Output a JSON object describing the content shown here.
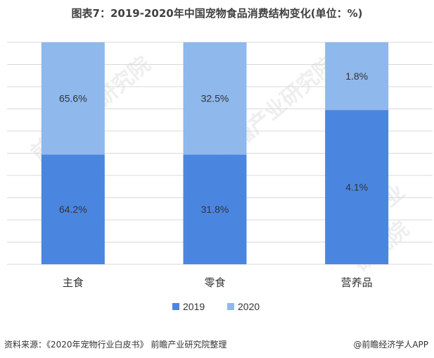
{
  "title": "图表7：2019-2020年中国宠物食品消费结构变化(单位：%)",
  "footer": {
    "source": "资料来源：《2020年宠物行业白皮书》 前瞻产业研究院整理",
    "brand": "@前瞻经济学人APP"
  },
  "watermark": "前瞻产业研究院",
  "chart_data": {
    "type": "bar",
    "stacked": true,
    "categories": [
      "主食",
      "零食",
      "营养品"
    ],
    "series": [
      {
        "name": "2019",
        "values": [
          64.2,
          31.8,
          4.1
        ],
        "labels": [
          "64.2%",
          "31.8%",
          "4.1%"
        ],
        "color": "#4a86e0"
      },
      {
        "name": "2020",
        "values": [
          65.6,
          32.5,
          1.8
        ],
        "labels": [
          "65.6%",
          "32.5%",
          "1.8%"
        ],
        "color": "#8fb8ec"
      }
    ],
    "legend_position": "bottom",
    "grid": true,
    "colors": {
      "series_2019": "#4a86e0",
      "series_2020": "#8fb8ec",
      "grid": "#d9d9d9",
      "text": "#333333"
    }
  }
}
